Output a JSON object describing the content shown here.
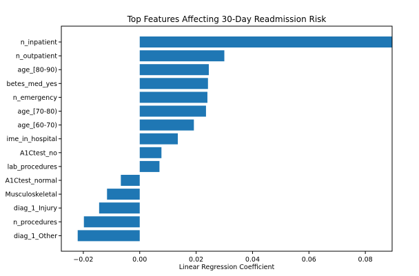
{
  "chart_data": {
    "type": "bar",
    "orientation": "horizontal",
    "title": "Top Features Affecting 30-Day Readmission Risk",
    "xlabel": "Linear Regression Coefficient",
    "ylabel": "",
    "categories": [
      "n_inpatient",
      "n_outpatient",
      "age_[80-90)",
      "betes_med_yes",
      "n_emergency",
      "age_[70-80)",
      "age_[60-70)",
      "ime_in_hospital",
      "A1Ctest_no",
      "lab_procedures",
      "A1Ctest_normal",
      "Musculoskeletal",
      "diag_1_Injury",
      "n_procedures",
      "diag_1_Other"
    ],
    "values": [
      0.0895,
      0.03,
      0.0245,
      0.0242,
      0.024,
      0.0235,
      0.0192,
      0.0135,
      0.0077,
      0.007,
      -0.0067,
      -0.0116,
      -0.0144,
      -0.0198,
      -0.022
    ],
    "xlim": [
      -0.0278,
      0.0895
    ],
    "xticks": [
      {
        "value": -0.02,
        "label": "−0.02"
      },
      {
        "value": 0,
        "label": "0.00"
      },
      {
        "value": 0.02,
        "label": "0.02"
      },
      {
        "value": 0.04,
        "label": "0.04"
      },
      {
        "value": 0.06,
        "label": "0.06"
      },
      {
        "value": 0.08,
        "label": "0.08"
      }
    ],
    "bar_color": "#1f77b4",
    "grid": false,
    "legend": "none"
  }
}
